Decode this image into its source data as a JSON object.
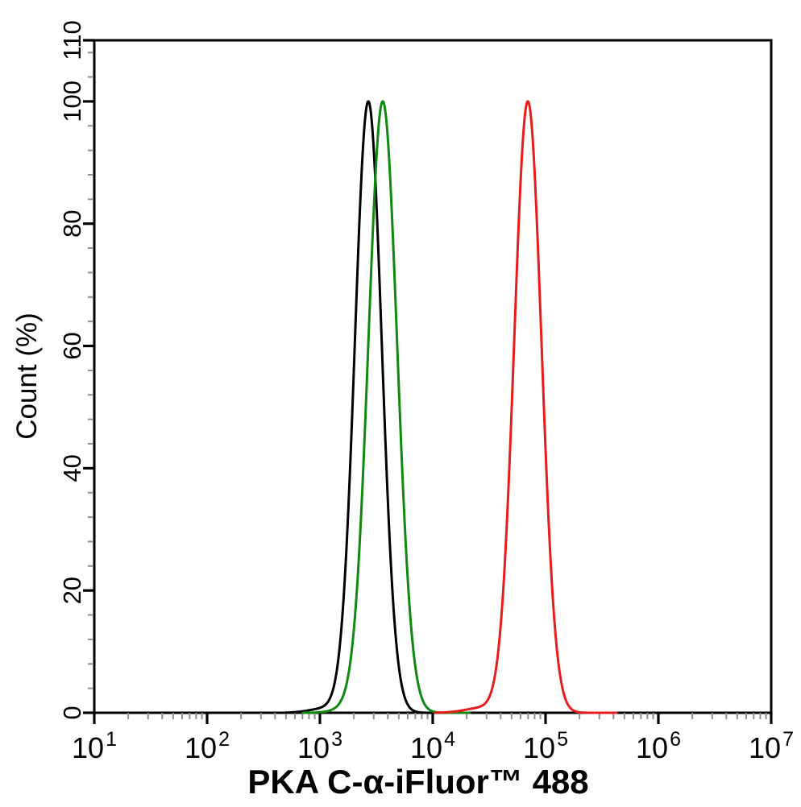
{
  "window": {
    "background": "#ffffff"
  },
  "chart_data": {
    "type": "line",
    "variant": "flow_cytometry_histogram",
    "title": "",
    "xlabel": "PKA C-α-iFluor™ 488",
    "ylabel": "Count (%)",
    "legend": "none",
    "grid": false,
    "x_axis": {
      "scale": "log10",
      "min": 10,
      "max": 10000000,
      "major_tick_exponents": [
        1,
        2,
        3,
        4,
        5,
        6,
        7
      ],
      "tick_label_base": "10",
      "minor_ticks": "log positions 2-9 per decade"
    },
    "y_axis": {
      "min": 0,
      "max": 110,
      "major_ticks": [
        0,
        20,
        40,
        60,
        80,
        100,
        110
      ],
      "minor_tick_step": 4
    },
    "series": [
      {
        "name": "black-curve",
        "color": "#000000",
        "peak_x_value": 2700,
        "peak_log10": 3.429,
        "peak_count_pct": 100,
        "sigma_log10": 0.119,
        "domain_log10": [
          2.7,
          4.2
        ],
        "foot": {
          "amp_pct": 0.7,
          "center_log10": 3.05,
          "sigma_log10": 0.14
        }
      },
      {
        "name": "green-curve",
        "color": "#0e890e",
        "peak_x_value": 3600,
        "peak_log10": 3.557,
        "peak_count_pct": 100,
        "sigma_log10": 0.127,
        "domain_log10": [
          2.85,
          4.33
        ],
        "foot": {
          "amp_pct": 0.6,
          "center_log10": 3.24,
          "sigma_log10": 0.12
        }
      },
      {
        "name": "red-curve",
        "color": "#e71d1d",
        "peak_x_value": 69700,
        "peak_log10": 4.843,
        "peak_count_pct": 100,
        "sigma_log10": 0.121,
        "domain_log10": [
          4.02,
          5.63
        ],
        "foot": {
          "amp_pct": 0.8,
          "center_log10": 4.44,
          "sigma_log10": 0.15
        }
      }
    ],
    "styles": {
      "axis_color": "#000000",
      "minor_tick_color": "#909090",
      "frame_line_width": 3,
      "curve_line_width": 3
    }
  }
}
